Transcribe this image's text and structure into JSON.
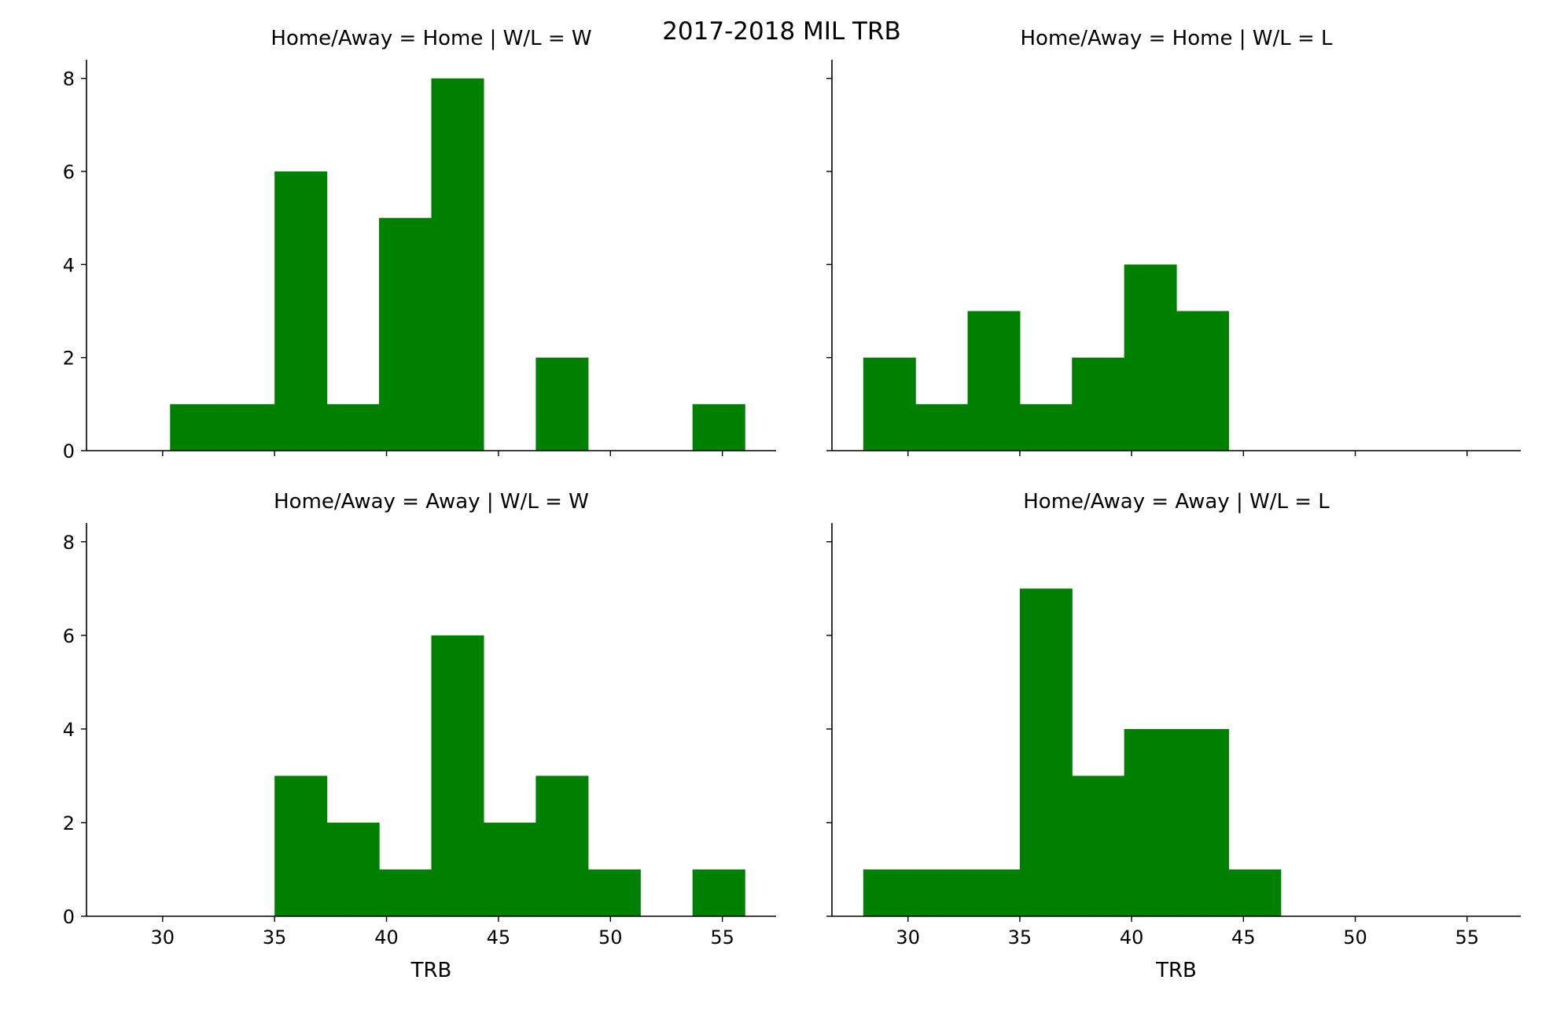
{
  "chart_data": {
    "type": "bar",
    "title": "2017-2018 MIL TRB",
    "xlabel": "TRB",
    "ylabel": "",
    "xlim": [
      26.6,
      57.4
    ],
    "ylim": [
      0,
      8.4
    ],
    "x_ticks": [
      30,
      35,
      40,
      45,
      50,
      55
    ],
    "y_ticks": [
      0,
      2,
      4,
      6,
      8
    ],
    "bin_edges": [
      28.0,
      30.333,
      32.667,
      35.0,
      37.333,
      39.667,
      42.0,
      44.333,
      46.667,
      49.0,
      51.333,
      53.667,
      56.0
    ],
    "color": "#008000",
    "panels": [
      {
        "title": "Home/Away = Home | W/L = W",
        "counts": [
          0,
          1,
          1,
          6,
          1,
          5,
          8,
          0,
          2,
          0,
          0,
          1
        ]
      },
      {
        "title": "Home/Away = Home | W/L = L",
        "counts": [
          2,
          1,
          3,
          1,
          2,
          4,
          3,
          0,
          0,
          0,
          0,
          0
        ]
      },
      {
        "title": "Home/Away = Away | W/L = W",
        "counts": [
          0,
          0,
          0,
          3,
          2,
          1,
          6,
          2,
          3,
          1,
          0,
          1
        ]
      },
      {
        "title": "Home/Away = Away | W/L = L",
        "counts": [
          1,
          1,
          1,
          7,
          3,
          4,
          4,
          1,
          0,
          0,
          0,
          0
        ]
      }
    ]
  }
}
